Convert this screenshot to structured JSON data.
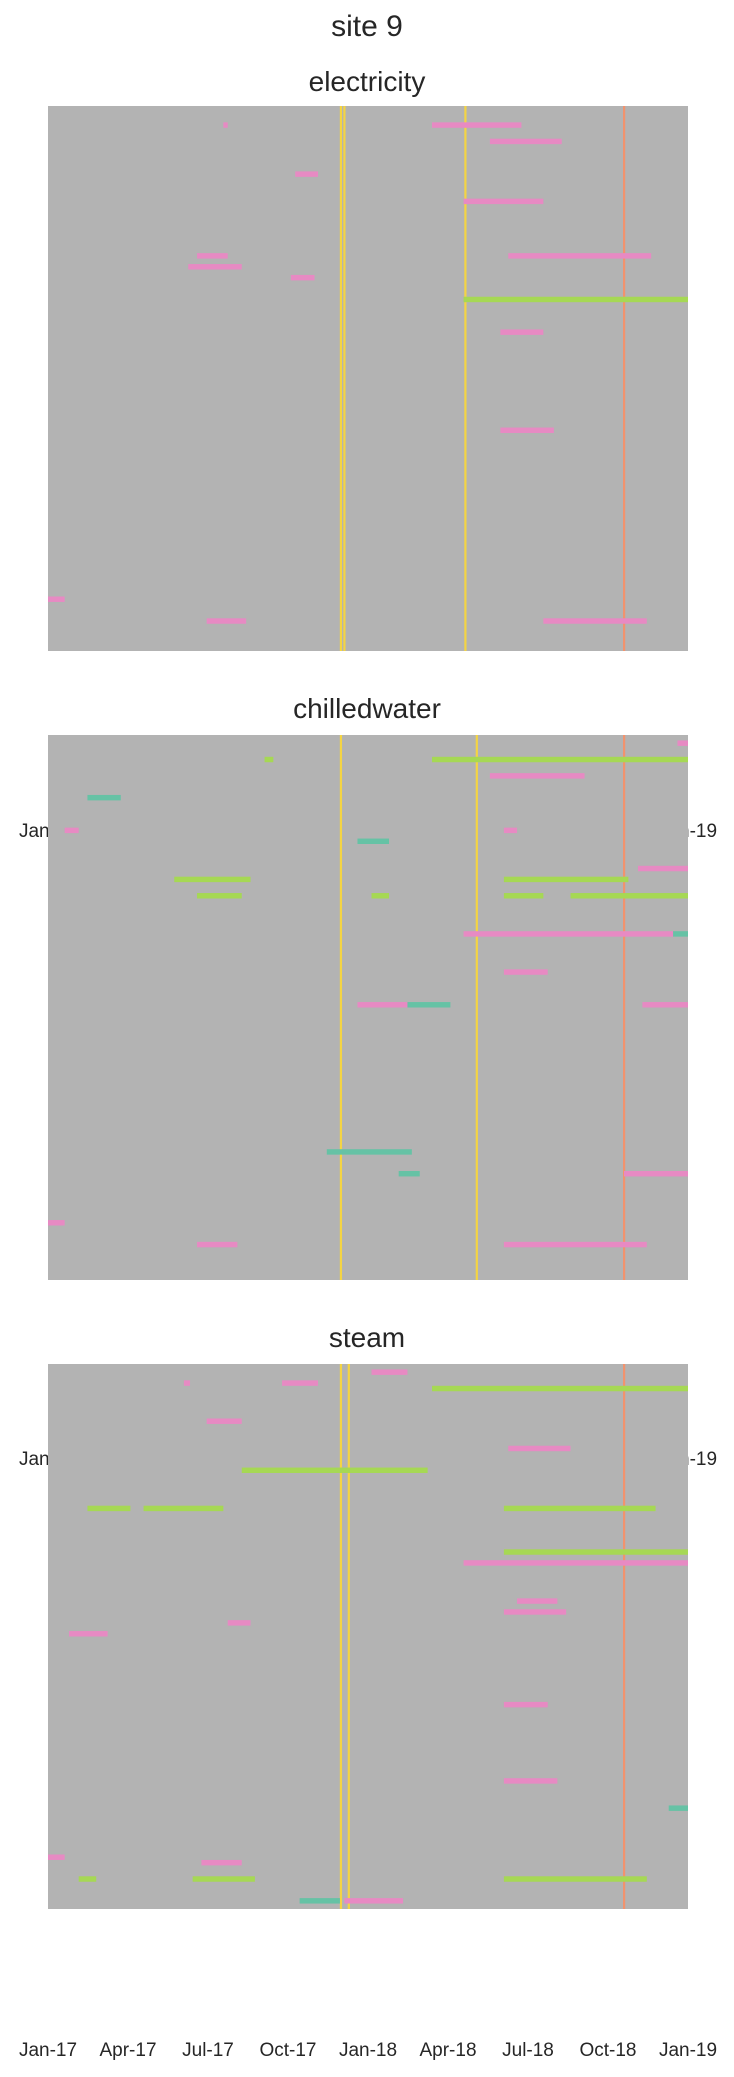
{
  "title": "site 9",
  "colors": {
    "background": "#b3b3b3",
    "pink": "#e78ac3",
    "green": "#a6d854",
    "orange": "#fc8d62",
    "yellow": "#ffd92f",
    "teal": "#66c2a5"
  },
  "chart_data": [
    {
      "type": "heatmap",
      "title": "electricity",
      "x_tick_labels": [
        "Jan-17",
        "Apr-17",
        "Jul-17",
        "Oct-17",
        "Jan-18",
        "Apr-18",
        "Jul-18",
        "Oct-18",
        "Jan-19"
      ],
      "x_range": [
        "2017-01-01",
        "2019-01-01"
      ],
      "rows": 100,
      "vlines": [
        {
          "date": "2017-12-01",
          "color": "yellow"
        },
        {
          "date": "2017-12-05",
          "color": "yellow"
        },
        {
          "date": "2018-04-22",
          "color": "yellow"
        },
        {
          "date": "2018-10-20",
          "color": "orange"
        }
      ],
      "segments": [
        {
          "row": 3,
          "start": "2018-03-15",
          "end": "2018-06-25",
          "color": "pink"
        },
        {
          "row": 3,
          "start": "2017-07-20",
          "end": "2017-07-25",
          "color": "pink"
        },
        {
          "row": 6,
          "start": "2018-05-20",
          "end": "2018-08-10",
          "color": "pink"
        },
        {
          "row": 12,
          "start": "2017-10-10",
          "end": "2017-11-05",
          "color": "pink"
        },
        {
          "row": 17,
          "start": "2018-04-20",
          "end": "2018-07-20",
          "color": "pink"
        },
        {
          "row": 27,
          "start": "2017-06-20",
          "end": "2017-07-25",
          "color": "pink"
        },
        {
          "row": 27,
          "start": "2018-06-10",
          "end": "2018-11-20",
          "color": "pink"
        },
        {
          "row": 29,
          "start": "2017-06-10",
          "end": "2017-08-10",
          "color": "pink"
        },
        {
          "row": 31,
          "start": "2017-10-05",
          "end": "2017-11-01",
          "color": "pink"
        },
        {
          "row": 35,
          "start": "2018-04-20",
          "end": "2019-01-01",
          "color": "green"
        },
        {
          "row": 41,
          "start": "2018-06-01",
          "end": "2018-07-20",
          "color": "pink"
        },
        {
          "row": 59,
          "start": "2018-06-01",
          "end": "2018-08-01",
          "color": "pink"
        },
        {
          "row": 90,
          "start": "2017-01-01",
          "end": "2017-01-20",
          "color": "pink"
        },
        {
          "row": 94,
          "start": "2017-07-01",
          "end": "2017-08-15",
          "color": "pink"
        },
        {
          "row": 94,
          "start": "2018-07-20",
          "end": "2018-11-15",
          "color": "pink"
        }
      ]
    },
    {
      "type": "heatmap",
      "title": "chilledwater",
      "x_tick_labels": [
        "Jan-17",
        "Apr-17",
        "Jul-17",
        "Oct-17",
        "Jan-18",
        "Apr-18",
        "Jul-18",
        "Oct-18",
        "Jan-19"
      ],
      "x_range": [
        "2017-01-01",
        "2019-01-01"
      ],
      "rows": 100,
      "vlines": [
        {
          "date": "2017-12-01",
          "color": "yellow"
        },
        {
          "date": "2018-05-05",
          "color": "yellow"
        },
        {
          "date": "2018-10-20",
          "color": "orange"
        }
      ],
      "segments": [
        {
          "row": 4,
          "start": "2018-03-15",
          "end": "2019-01-01",
          "color": "green"
        },
        {
          "row": 4,
          "start": "2017-09-05",
          "end": "2017-09-15",
          "color": "green"
        },
        {
          "row": 1,
          "start": "2018-12-20",
          "end": "2019-01-01",
          "color": "pink"
        },
        {
          "row": 7,
          "start": "2018-05-20",
          "end": "2018-09-05",
          "color": "pink"
        },
        {
          "row": 11,
          "start": "2017-02-15",
          "end": "2017-03-25",
          "color": "teal"
        },
        {
          "row": 17,
          "start": "2017-01-20",
          "end": "2017-02-05",
          "color": "pink"
        },
        {
          "row": 17,
          "start": "2018-06-05",
          "end": "2018-06-20",
          "color": "pink"
        },
        {
          "row": 19,
          "start": "2017-12-20",
          "end": "2018-01-25",
          "color": "teal"
        },
        {
          "row": 24,
          "start": "2018-11-05",
          "end": "2019-01-01",
          "color": "pink"
        },
        {
          "row": 26,
          "start": "2017-05-25",
          "end": "2017-08-20",
          "color": "green"
        },
        {
          "row": 26,
          "start": "2018-06-05",
          "end": "2018-10-25",
          "color": "green"
        },
        {
          "row": 29,
          "start": "2017-06-20",
          "end": "2017-08-10",
          "color": "green"
        },
        {
          "row": 29,
          "start": "2018-06-05",
          "end": "2018-07-20",
          "color": "green"
        },
        {
          "row": 29,
          "start": "2018-08-20",
          "end": "2019-01-01",
          "color": "green"
        },
        {
          "row": 29,
          "start": "2018-01-05",
          "end": "2018-01-25",
          "color": "green"
        },
        {
          "row": 36,
          "start": "2018-04-20",
          "end": "2018-12-15",
          "color": "pink"
        },
        {
          "row": 36,
          "start": "2018-12-15",
          "end": "2019-01-01",
          "color": "teal"
        },
        {
          "row": 43,
          "start": "2018-06-05",
          "end": "2018-07-25",
          "color": "pink"
        },
        {
          "row": 49,
          "start": "2017-12-20",
          "end": "2018-02-15",
          "color": "pink"
        },
        {
          "row": 49,
          "start": "2018-02-15",
          "end": "2018-04-05",
          "color": "teal"
        },
        {
          "row": 49,
          "start": "2018-11-10",
          "end": "2019-01-01",
          "color": "pink"
        },
        {
          "row": 76,
          "start": "2017-11-15",
          "end": "2018-02-20",
          "color": "teal"
        },
        {
          "row": 80,
          "start": "2018-02-05",
          "end": "2018-03-01",
          "color": "teal"
        },
        {
          "row": 80,
          "start": "2018-10-20",
          "end": "2019-01-01",
          "color": "pink"
        },
        {
          "row": 89,
          "start": "2017-01-01",
          "end": "2017-01-20",
          "color": "pink"
        },
        {
          "row": 93,
          "start": "2017-06-20",
          "end": "2017-08-05",
          "color": "pink"
        },
        {
          "row": 93,
          "start": "2018-06-05",
          "end": "2018-11-15",
          "color": "pink"
        }
      ]
    },
    {
      "type": "heatmap",
      "title": "steam",
      "x_tick_labels": [
        "Jan-17",
        "Apr-17",
        "Jul-17",
        "Oct-17",
        "Jan-18",
        "Apr-18",
        "Jul-18",
        "Oct-18",
        "Jan-19"
      ],
      "x_range": [
        "2017-01-01",
        "2019-01-01"
      ],
      "rows": 100,
      "vlines": [
        {
          "date": "2017-12-01",
          "color": "yellow"
        },
        {
          "date": "2017-12-10",
          "color": "yellow"
        },
        {
          "date": "2018-10-20",
          "color": "orange"
        }
      ],
      "segments": [
        {
          "row": 3,
          "start": "2017-09-25",
          "end": "2017-11-05",
          "color": "pink"
        },
        {
          "row": 3,
          "start": "2017-06-05",
          "end": "2017-06-12",
          "color": "pink"
        },
        {
          "row": 1,
          "start": "2018-01-05",
          "end": "2018-02-15",
          "color": "pink"
        },
        {
          "row": 4,
          "start": "2018-03-15",
          "end": "2019-01-01",
          "color": "green"
        },
        {
          "row": 10,
          "start": "2017-07-01",
          "end": "2017-08-10",
          "color": "pink"
        },
        {
          "row": 15,
          "start": "2018-06-10",
          "end": "2018-08-20",
          "color": "pink"
        },
        {
          "row": 19,
          "start": "2017-08-10",
          "end": "2018-03-10",
          "color": "green"
        },
        {
          "row": 26,
          "start": "2017-02-15",
          "end": "2017-04-05",
          "color": "green"
        },
        {
          "row": 26,
          "start": "2017-04-20",
          "end": "2017-07-20",
          "color": "green"
        },
        {
          "row": 26,
          "start": "2018-06-05",
          "end": "2018-11-25",
          "color": "green"
        },
        {
          "row": 34,
          "start": "2018-06-05",
          "end": "2019-01-01",
          "color": "green"
        },
        {
          "row": 36,
          "start": "2018-04-20",
          "end": "2019-01-01",
          "color": "pink"
        },
        {
          "row": 43,
          "start": "2018-06-20",
          "end": "2018-08-05",
          "color": "pink"
        },
        {
          "row": 45,
          "start": "2018-06-05",
          "end": "2018-08-15",
          "color": "pink"
        },
        {
          "row": 47,
          "start": "2017-07-25",
          "end": "2017-08-20",
          "color": "pink"
        },
        {
          "row": 49,
          "start": "2017-01-25",
          "end": "2017-03-10",
          "color": "pink"
        },
        {
          "row": 62,
          "start": "2018-06-05",
          "end": "2018-07-25",
          "color": "pink"
        },
        {
          "row": 76,
          "start": "2018-06-05",
          "end": "2018-08-05",
          "color": "pink"
        },
        {
          "row": 81,
          "start": "2018-12-10",
          "end": "2019-01-01",
          "color": "teal"
        },
        {
          "row": 90,
          "start": "2017-01-01",
          "end": "2017-01-20",
          "color": "pink"
        },
        {
          "row": 91,
          "start": "2017-06-25",
          "end": "2017-08-10",
          "color": "pink"
        },
        {
          "row": 94,
          "start": "2017-02-05",
          "end": "2017-02-25",
          "color": "green"
        },
        {
          "row": 94,
          "start": "2017-06-15",
          "end": "2017-08-25",
          "color": "green"
        },
        {
          "row": 94,
          "start": "2018-06-05",
          "end": "2018-11-15",
          "color": "green"
        },
        {
          "row": 98,
          "start": "2017-12-05",
          "end": "2018-02-10",
          "color": "pink"
        },
        {
          "row": 98,
          "start": "2017-10-15",
          "end": "2017-11-30",
          "color": "teal"
        }
      ]
    }
  ]
}
